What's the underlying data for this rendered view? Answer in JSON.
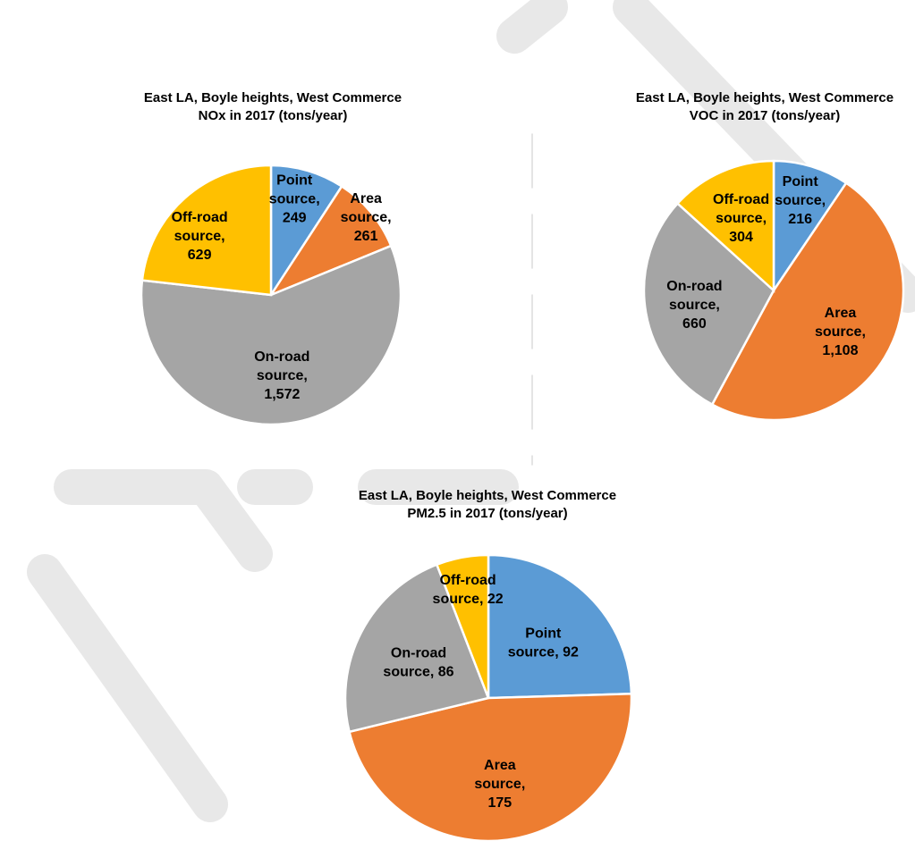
{
  "chart_data": [
    {
      "type": "pie",
      "title": [
        "East LA, Boyle heights, West Commerce",
        "NOx in 2017 (tons/year)"
      ],
      "categories": [
        "Point source",
        "Area source",
        "On-road source",
        "Off-road source"
      ],
      "values": [
        249,
        261,
        1572,
        629
      ],
      "value_labels": [
        "249",
        "261",
        "1,572",
        "629"
      ],
      "data_labels": [
        [
          "Point",
          "source,",
          "249"
        ],
        [
          "Area",
          "source,",
          "261"
        ],
        [
          "On-road",
          "source,",
          "1,572"
        ],
        [
          "Off-road",
          "source,",
          "629"
        ]
      ],
      "colors": [
        "#5b9bd5",
        "#ed7d31",
        "#a5a5a5",
        "#ffc000"
      ]
    },
    {
      "type": "pie",
      "title": [
        "East LA, Boyle heights, West Commerce",
        "VOC in 2017 (tons/year)"
      ],
      "categories": [
        "Point source",
        "Area source",
        "On-road source",
        "Off-road source"
      ],
      "values": [
        216,
        1108,
        660,
        304
      ],
      "value_labels": [
        "216",
        "1,108",
        "660",
        "304"
      ],
      "data_labels": [
        [
          "Point",
          "source,",
          "216"
        ],
        [
          "Area",
          "source,",
          "1,108"
        ],
        [
          "On-road",
          "source,",
          "660"
        ],
        [
          "Off-road",
          "source,",
          "304"
        ]
      ],
      "colors": [
        "#5b9bd5",
        "#ed7d31",
        "#a5a5a5",
        "#ffc000"
      ]
    },
    {
      "type": "pie",
      "title": [
        "East LA, Boyle heights, West Commerce",
        "PM2.5 in 2017 (tons/year)"
      ],
      "categories": [
        "Point source",
        "Area source",
        "On-road source",
        "Off-road source"
      ],
      "values": [
        92,
        175,
        86,
        22
      ],
      "value_labels": [
        "92",
        "175",
        "86",
        "22"
      ],
      "data_labels": [
        [
          "Point",
          "source, 92"
        ],
        [
          "Area",
          "source,",
          "175"
        ],
        [
          "On-road",
          "source, 86"
        ],
        [
          "Off-road",
          "source, 22"
        ]
      ],
      "colors": [
        "#5b9bd5",
        "#ed7d31",
        "#a5a5a5",
        "#ffc000"
      ]
    }
  ]
}
